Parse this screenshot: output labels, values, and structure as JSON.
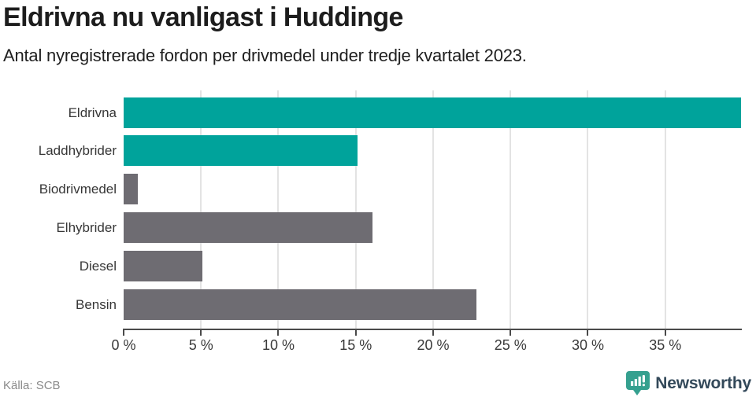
{
  "chart_data": {
    "type": "bar",
    "orientation": "horizontal",
    "title": "Eldrivna nu vanligast i Huddinge",
    "subtitle": "Antal nyregistrerade fordon per drivmedel under tredje kvartalet 2023.",
    "categories": [
      "Eldrivna",
      "Laddhybrider",
      "Biodrivmedel",
      "Elhybrider",
      "Diesel",
      "Bensin"
    ],
    "values": [
      39.9,
      15.1,
      0.9,
      16.1,
      5.1,
      22.8
    ],
    "unit": "%",
    "highlighted": [
      true,
      true,
      false,
      false,
      false,
      false
    ],
    "xlabel": "",
    "ylabel": "",
    "xlim": [
      0,
      39.9
    ],
    "ticks": [
      {
        "value": 0,
        "label": "0 %"
      },
      {
        "value": 5,
        "label": "5 %"
      },
      {
        "value": 10,
        "label": "10 %"
      },
      {
        "value": 15,
        "label": "15 %"
      },
      {
        "value": 20,
        "label": "20 %"
      },
      {
        "value": 25,
        "label": "25 %"
      },
      {
        "value": 30,
        "label": "30 %"
      },
      {
        "value": 35,
        "label": "35 %"
      }
    ],
    "grid": true,
    "legend": "none",
    "colors": {
      "highlight": "#00a39b",
      "base": "#6e6c72",
      "gridline": "#e3e3e3",
      "axis": "#4a4a4a"
    }
  },
  "footer": {
    "source": "Källa: SCB",
    "logo_text": "Newsworthy",
    "logo_icon_color": "#35a08f",
    "logo_text_color": "#33495a"
  }
}
